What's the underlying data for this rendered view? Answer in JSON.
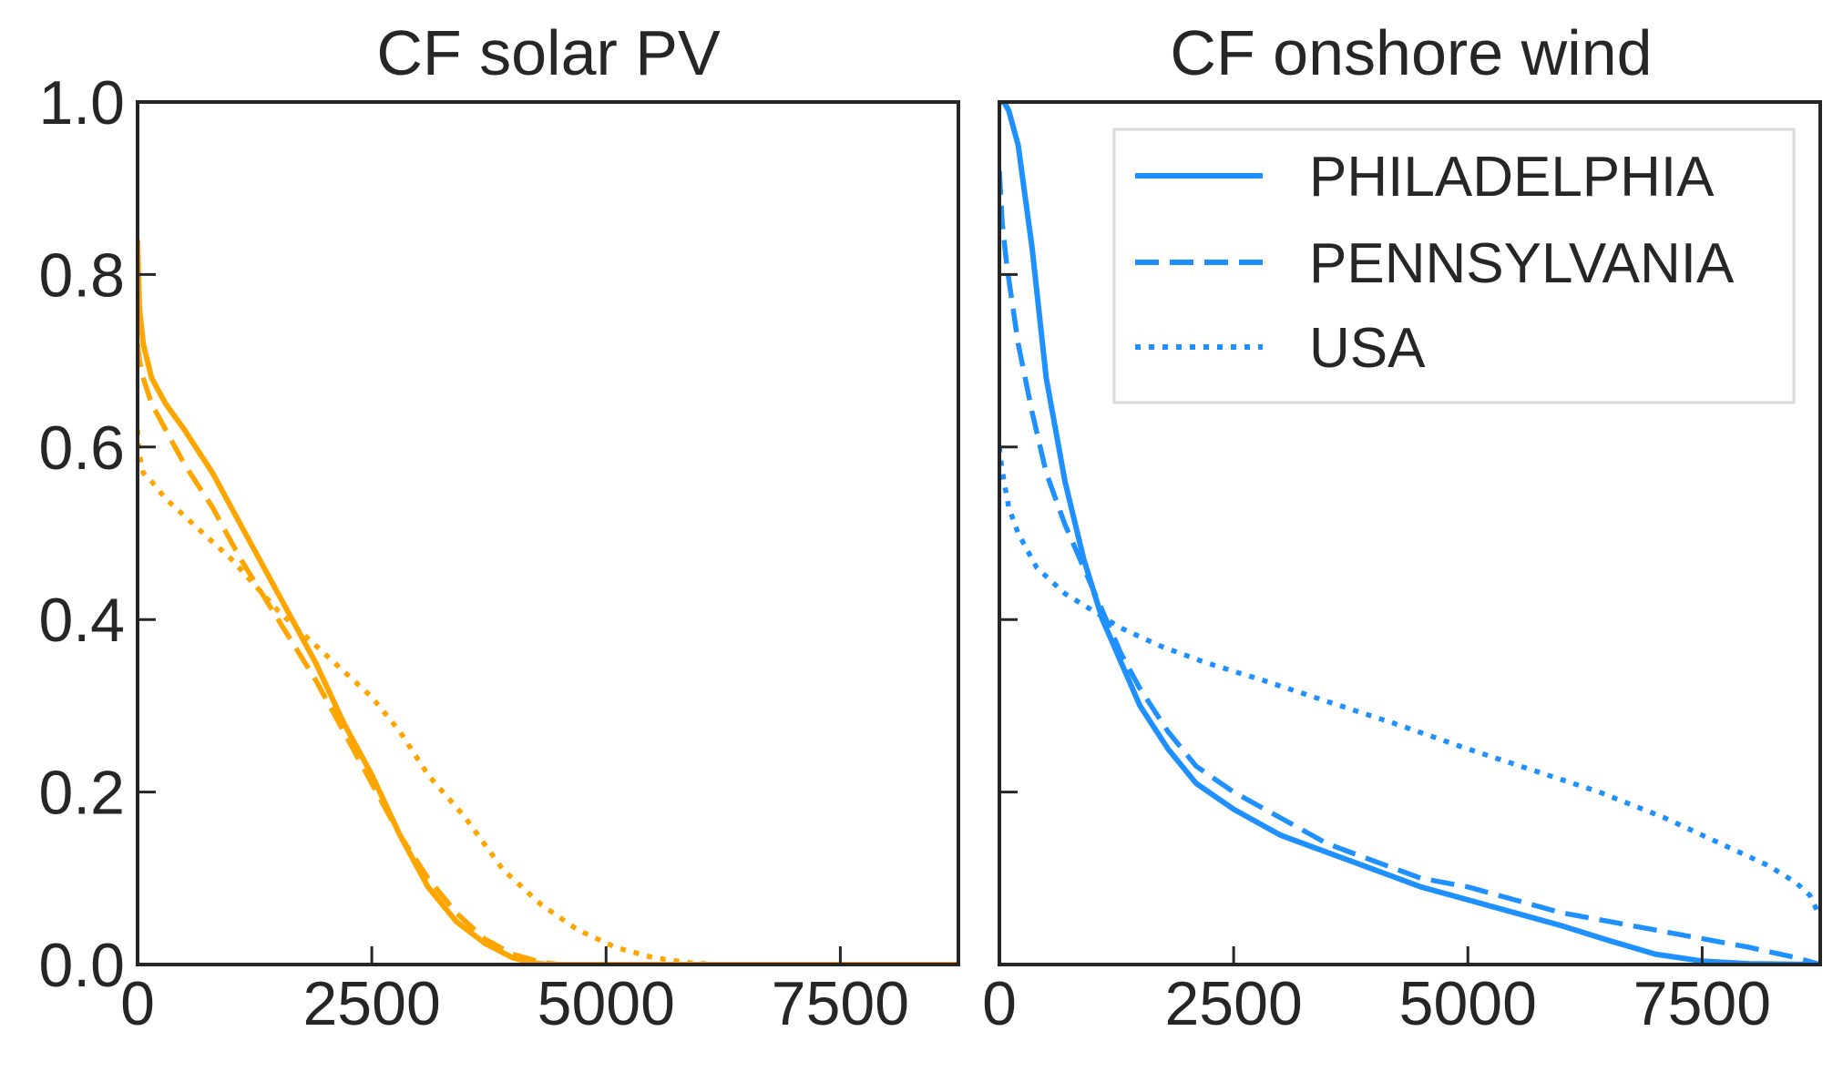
{
  "chart_data": [
    {
      "type": "line",
      "title": "CF solar PV",
      "xlabel": "",
      "ylabel": "",
      "xlim": [
        0,
        8760
      ],
      "ylim": [
        0,
        1.0
      ],
      "xticks": [
        0,
        2500,
        5000,
        7500
      ],
      "xtick_labels": [
        "0",
        "2500",
        "5000",
        "7500"
      ],
      "yticks": [
        0,
        0.2,
        0.4,
        0.6,
        0.8,
        1.0
      ],
      "ytick_labels": [
        "0.0",
        "0.2",
        "0.4",
        "0.6",
        "0.8",
        "1.0"
      ],
      "grid": false,
      "color": "#FFA500",
      "series": [
        {
          "name": "PHILADELPHIA",
          "style": "solid",
          "x": [
            0,
            20,
            60,
            150,
            300,
            500,
            800,
            1100,
            1500,
            1900,
            2200,
            2500,
            2800,
            3100,
            3400,
            3700,
            4000,
            4200,
            4400,
            8760
          ],
          "y": [
            0.84,
            0.76,
            0.72,
            0.68,
            0.65,
            0.62,
            0.57,
            0.51,
            0.43,
            0.35,
            0.28,
            0.22,
            0.15,
            0.09,
            0.05,
            0.025,
            0.008,
            0.002,
            0.0,
            0.0
          ]
        },
        {
          "name": "PENNSYLVANIA",
          "style": "dashed",
          "x": [
            0,
            20,
            60,
            150,
            300,
            500,
            800,
            1100,
            1500,
            1900,
            2200,
            2500,
            2800,
            3100,
            3400,
            3700,
            4000,
            4300,
            4500,
            8760
          ],
          "y": [
            0.72,
            0.7,
            0.68,
            0.65,
            0.62,
            0.58,
            0.53,
            0.47,
            0.4,
            0.33,
            0.27,
            0.21,
            0.15,
            0.1,
            0.06,
            0.03,
            0.012,
            0.003,
            0.0,
            0.0
          ]
        },
        {
          "name": "USA",
          "style": "dotted",
          "x": [
            0,
            20,
            60,
            150,
            300,
            600,
            1000,
            1500,
            2000,
            2500,
            2800,
            3100,
            3500,
            3900,
            4300,
            4700,
            5100,
            5500,
            5900,
            6200,
            8760
          ],
          "y": [
            0.62,
            0.59,
            0.57,
            0.56,
            0.54,
            0.51,
            0.47,
            0.41,
            0.36,
            0.31,
            0.27,
            0.22,
            0.17,
            0.11,
            0.07,
            0.04,
            0.02,
            0.008,
            0.002,
            0.0,
            0.0
          ]
        }
      ]
    },
    {
      "type": "line",
      "title": "CF onshore wind",
      "xlabel": "",
      "ylabel": "",
      "xlim": [
        0,
        8760
      ],
      "ylim": [
        0,
        1.0
      ],
      "xticks": [
        0,
        2500,
        5000,
        7500
      ],
      "xtick_labels": [
        "0",
        "2500",
        "5000",
        "7500"
      ],
      "yticks": [
        0,
        0.2,
        0.4,
        0.6,
        0.8,
        1.0
      ],
      "ytick_labels": [
        "",
        "",
        "",
        "",
        "",
        ""
      ],
      "grid": false,
      "color": "#1E90FF",
      "legend": {
        "position": "upper-right",
        "entries": [
          "PHILADELPHIA",
          "PENNSYLVANIA",
          "USA"
        ]
      },
      "series": [
        {
          "name": "PHILADELPHIA",
          "style": "solid",
          "x": [
            0,
            50,
            100,
            200,
            350,
            500,
            700,
            900,
            1100,
            1300,
            1500,
            1800,
            2100,
            2500,
            3000,
            3500,
            4000,
            4500,
            5000,
            5500,
            6000,
            6500,
            7000,
            7500,
            8000,
            8760
          ],
          "y": [
            1.0,
            1.0,
            0.99,
            0.95,
            0.83,
            0.68,
            0.56,
            0.47,
            0.4,
            0.35,
            0.3,
            0.25,
            0.21,
            0.18,
            0.15,
            0.13,
            0.11,
            0.09,
            0.075,
            0.06,
            0.045,
            0.028,
            0.012,
            0.004,
            0.001,
            0.0
          ]
        },
        {
          "name": "PENNSYLVANIA",
          "style": "dashed",
          "x": [
            0,
            30,
            80,
            200,
            350,
            500,
            700,
            900,
            1100,
            1300,
            1500,
            1800,
            2100,
            2500,
            3000,
            3500,
            4000,
            4500,
            5000,
            5500,
            6000,
            6500,
            7000,
            7500,
            8000,
            8500,
            8760
          ],
          "y": [
            0.92,
            0.86,
            0.81,
            0.72,
            0.64,
            0.57,
            0.51,
            0.46,
            0.41,
            0.36,
            0.32,
            0.27,
            0.23,
            0.2,
            0.17,
            0.14,
            0.12,
            0.1,
            0.09,
            0.075,
            0.06,
            0.05,
            0.04,
            0.03,
            0.02,
            0.008,
            0.0
          ]
        },
        {
          "name": "USA",
          "style": "dotted",
          "x": [
            0,
            20,
            50,
            100,
            200,
            400,
            700,
            1000,
            1300,
            1700,
            2200,
            2800,
            3500,
            4200,
            5000,
            5700,
            6400,
            7100,
            7700,
            8200,
            8500,
            8650,
            8760
          ],
          "y": [
            0.6,
            0.58,
            0.56,
            0.53,
            0.5,
            0.46,
            0.43,
            0.41,
            0.39,
            0.37,
            0.35,
            0.33,
            0.305,
            0.28,
            0.25,
            0.225,
            0.2,
            0.17,
            0.14,
            0.115,
            0.095,
            0.08,
            0.055
          ]
        }
      ]
    }
  ]
}
